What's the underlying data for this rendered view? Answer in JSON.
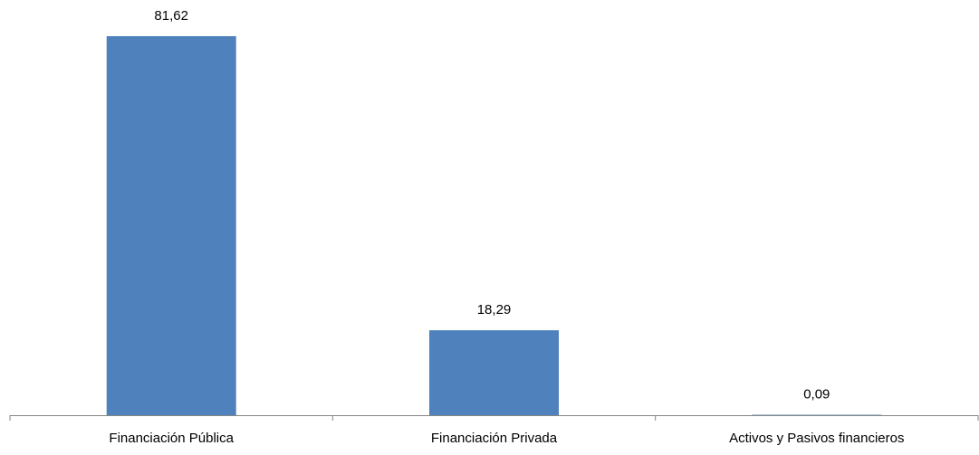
{
  "chart_data": {
    "type": "bar",
    "categories": [
      "Financiación Pública",
      "Financiación Privada",
      "Activos y Pasivos financieros"
    ],
    "values": [
      81.62,
      18.29,
      0.09
    ],
    "data_labels": [
      "81,62",
      "18,29",
      "0,09"
    ],
    "title": "",
    "xlabel": "",
    "ylabel": "",
    "ylim": [
      0,
      81.62
    ],
    "grid": false,
    "legend": "none",
    "bar_color": "#4F81BD",
    "axis_color": "#868686"
  }
}
